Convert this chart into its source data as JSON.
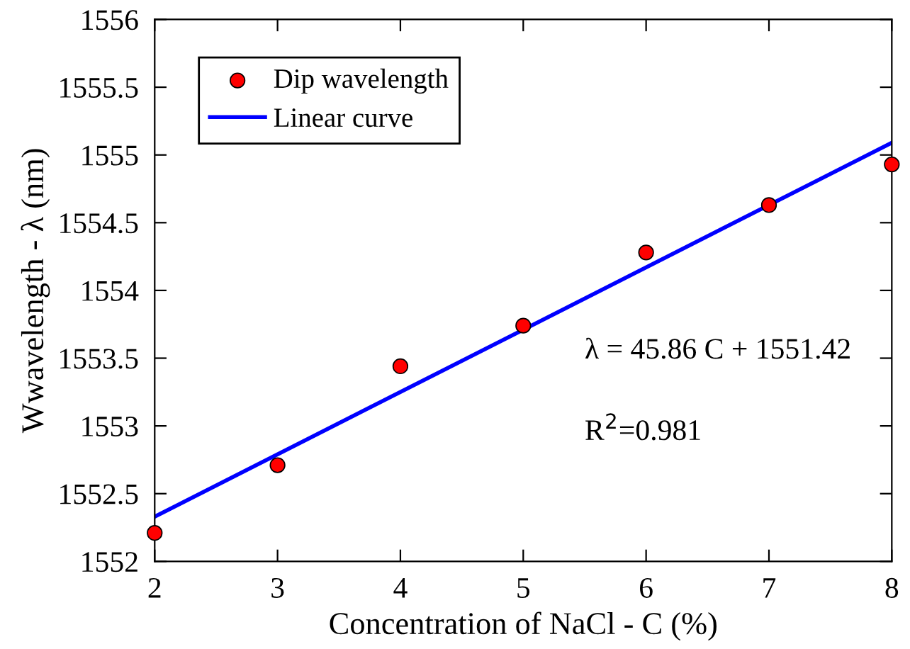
{
  "chart_data": {
    "type": "scatter",
    "xlabel": "Concentration of NaCl - C (%)",
    "ylabel": "Wwavelength - λ (nm)",
    "xlim": [
      2,
      8
    ],
    "xticks": [
      2,
      3,
      4,
      5,
      6,
      7,
      8
    ],
    "ylim": [
      1552,
      1556
    ],
    "yticks": [
      1552,
      1552.5,
      1553,
      1553.5,
      1554,
      1554.5,
      1555,
      1555.5,
      1556
    ],
    "series": [
      {
        "name": "Dip wavelength",
        "color": "#ff0000",
        "marker": "circle",
        "x": [
          2,
          3,
          4,
          5,
          6,
          7,
          8
        ],
        "values": [
          1552.21,
          1552.71,
          1553.44,
          1553.74,
          1554.28,
          1554.63,
          1554.93
        ]
      },
      {
        "name": "Linear curve",
        "type": "line",
        "color": "#0000ff",
        "marker": "none",
        "line_style": "solid",
        "x": [
          2,
          8
        ],
        "values": [
          1552.33,
          1555.09
        ]
      }
    ],
    "annotations": [
      "λ = 45.86 C + 1551.42",
      "R$^{2}$=0.981"
    ],
    "legend": "top left",
    "grid": false
  }
}
